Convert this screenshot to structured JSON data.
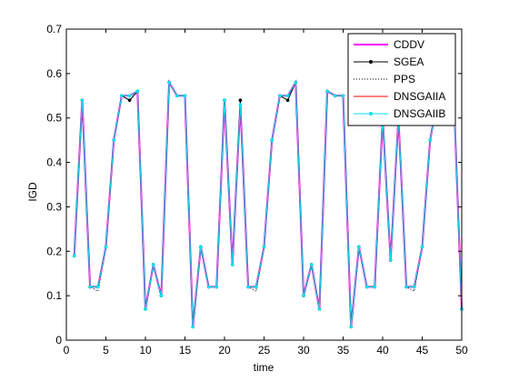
{
  "chart_data": {
    "type": "line",
    "title": "",
    "xlabel": "time",
    "ylabel": "IGD",
    "xlim": [
      0,
      50
    ],
    "ylim": [
      0,
      0.7
    ],
    "xticks": [
      0,
      5,
      10,
      15,
      20,
      25,
      30,
      35,
      40,
      45,
      50
    ],
    "yticks": [
      0,
      0.1,
      0.2,
      0.3,
      0.4,
      0.5,
      0.6,
      0.7
    ],
    "grid": false,
    "legend_position": "top-right",
    "x": [
      1,
      2,
      3,
      4,
      5,
      6,
      7,
      8,
      9,
      10,
      11,
      12,
      13,
      14,
      15,
      16,
      17,
      18,
      19,
      20,
      21,
      22,
      23,
      24,
      25,
      26,
      27,
      28,
      29,
      30,
      31,
      32,
      33,
      34,
      35,
      36,
      37,
      38,
      39,
      40,
      41,
      42,
      43,
      44,
      45,
      46,
      47,
      48,
      49,
      50
    ],
    "series": [
      {
        "name": "CDDV",
        "color": "#ff00ff",
        "style": "solid-thick",
        "values": [
          0.19,
          0.54,
          0.12,
          0.12,
          0.21,
          0.45,
          0.55,
          0.55,
          0.56,
          0.07,
          0.17,
          0.1,
          0.58,
          0.55,
          0.55,
          0.03,
          0.21,
          0.12,
          0.12,
          0.54,
          0.17,
          0.53,
          0.12,
          0.12,
          0.21,
          0.45,
          0.55,
          0.55,
          0.58,
          0.1,
          0.17,
          0.07,
          0.56,
          0.55,
          0.55,
          0.03,
          0.21,
          0.12,
          0.12,
          0.5,
          0.18,
          0.5,
          0.12,
          0.12,
          0.21,
          0.45,
          0.55,
          0.55,
          0.55,
          0.07
        ]
      },
      {
        "name": "SGEA",
        "color": "#000000",
        "style": "solid-dot",
        "values": [
          0.19,
          0.54,
          0.12,
          0.12,
          0.21,
          0.45,
          0.55,
          0.54,
          0.56,
          0.07,
          0.17,
          0.1,
          0.58,
          0.55,
          0.55,
          0.03,
          0.21,
          0.12,
          0.12,
          0.54,
          0.17,
          0.54,
          0.12,
          0.12,
          0.21,
          0.45,
          0.55,
          0.54,
          0.58,
          0.1,
          0.17,
          0.07,
          0.56,
          0.55,
          0.55,
          0.03,
          0.21,
          0.12,
          0.12,
          0.5,
          0.18,
          0.5,
          0.12,
          0.12,
          0.21,
          0.45,
          0.55,
          0.55,
          0.55,
          0.07
        ]
      },
      {
        "name": "PPS",
        "color": "#000000",
        "style": "dotted",
        "values": [
          0.19,
          0.54,
          0.12,
          0.11,
          0.21,
          0.45,
          0.55,
          0.54,
          0.56,
          0.07,
          0.17,
          0.1,
          0.58,
          0.55,
          0.55,
          0.03,
          0.21,
          0.12,
          0.12,
          0.54,
          0.17,
          0.53,
          0.12,
          0.11,
          0.21,
          0.45,
          0.55,
          0.55,
          0.58,
          0.1,
          0.17,
          0.07,
          0.56,
          0.55,
          0.55,
          0.03,
          0.21,
          0.12,
          0.12,
          0.5,
          0.18,
          0.5,
          0.12,
          0.11,
          0.21,
          0.45,
          0.55,
          0.55,
          0.55,
          0.07
        ]
      },
      {
        "name": "DNSGAIIA",
        "color": "#ff0000",
        "style": "solid",
        "values": [
          0.19,
          0.54,
          0.12,
          0.12,
          0.21,
          0.45,
          0.55,
          0.55,
          0.56,
          0.07,
          0.17,
          0.1,
          0.58,
          0.55,
          0.55,
          0.03,
          0.21,
          0.12,
          0.12,
          0.54,
          0.17,
          0.53,
          0.12,
          0.12,
          0.21,
          0.45,
          0.55,
          0.55,
          0.58,
          0.1,
          0.17,
          0.07,
          0.56,
          0.55,
          0.55,
          0.03,
          0.21,
          0.12,
          0.12,
          0.5,
          0.18,
          0.5,
          0.12,
          0.12,
          0.21,
          0.45,
          0.55,
          0.55,
          0.55,
          0.07
        ]
      },
      {
        "name": "DNSGAIIB",
        "color": "#00e5ee",
        "style": "solid-dot",
        "values": [
          0.19,
          0.54,
          0.12,
          0.12,
          0.21,
          0.45,
          0.55,
          0.55,
          0.56,
          0.07,
          0.17,
          0.1,
          0.58,
          0.55,
          0.55,
          0.03,
          0.21,
          0.12,
          0.12,
          0.54,
          0.17,
          0.53,
          0.12,
          0.12,
          0.21,
          0.45,
          0.55,
          0.55,
          0.58,
          0.1,
          0.17,
          0.07,
          0.56,
          0.55,
          0.55,
          0.03,
          0.21,
          0.12,
          0.12,
          0.5,
          0.18,
          0.5,
          0.12,
          0.12,
          0.21,
          0.45,
          0.55,
          0.55,
          0.55,
          0.07
        ]
      }
    ]
  }
}
